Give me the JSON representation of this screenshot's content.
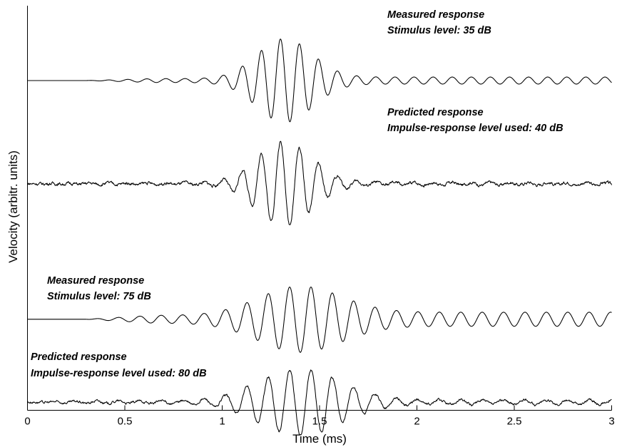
{
  "chart_data": {
    "type": "line",
    "title": "",
    "xlabel": "Time (ms)",
    "ylabel": "Velocity (arbitr. units)",
    "xlim": [
      0,
      3
    ],
    "xticks": [
      0,
      0.5,
      1,
      1.5,
      2,
      2.5,
      3
    ],
    "xtick_labels": [
      "0",
      "0.5",
      "1",
      "1.5",
      "2",
      "2.5",
      "3"
    ],
    "y_ticks_shown": false,
    "grid": false,
    "color": "#000000",
    "series": [
      {
        "annotation": [
          "Measured response",
          "Stimulus level: 35 dB"
        ],
        "baseline_level": 0.815,
        "onset_ms": 0.3,
        "frequency_khz": 10.2,
        "envelope_peak_ms": 1.32,
        "peak_amplitude": 0.95,
        "envelope_width_ms": 0.2,
        "tail_amplitude": 0.08,
        "noise": 0.0
      },
      {
        "annotation": [
          "Predicted response",
          "Impulse-response level used:  40 dB"
        ],
        "baseline_level": 0.56,
        "onset_ms": 0.0,
        "frequency_khz": 10.2,
        "envelope_peak_ms": 1.32,
        "peak_amplitude": 0.95,
        "envelope_width_ms": 0.2,
        "tail_amplitude": 0.03,
        "noise": 0.025
      },
      {
        "annotation": [
          "Measured response",
          "Stimulus level: 75 dB"
        ],
        "baseline_level": 0.225,
        "onset_ms": 0.3,
        "frequency_khz": 9.1,
        "envelope_peak_ms": 1.4,
        "peak_amplitude": 0.75,
        "envelope_width_ms": 0.3,
        "tail_amplitude": 0.16,
        "noise": 0.0
      },
      {
        "annotation": [
          "Predicted response",
          "Impulse-response level used: 80 dB"
        ],
        "baseline_level": 0.02,
        "onset_ms": 0.0,
        "frequency_khz": 9.1,
        "envelope_peak_ms": 1.4,
        "peak_amplitude": 0.75,
        "envelope_width_ms": 0.3,
        "tail_amplitude": 0.05,
        "noise": 0.02
      }
    ]
  }
}
